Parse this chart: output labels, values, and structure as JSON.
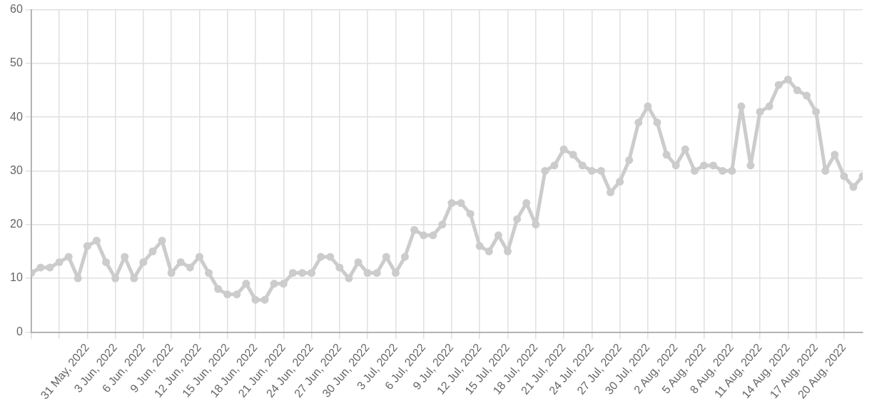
{
  "chart_data": {
    "type": "line",
    "x": [
      "2022-05-25",
      "2022-05-26",
      "2022-05-27",
      "2022-05-28",
      "2022-05-29",
      "2022-05-30",
      "2022-05-31",
      "2022-06-01",
      "2022-06-02",
      "2022-06-03",
      "2022-06-04",
      "2022-06-05",
      "2022-06-06",
      "2022-06-07",
      "2022-06-08",
      "2022-06-09",
      "2022-06-10",
      "2022-06-11",
      "2022-06-12",
      "2022-06-13",
      "2022-06-14",
      "2022-06-15",
      "2022-06-16",
      "2022-06-17",
      "2022-06-18",
      "2022-06-19",
      "2022-06-20",
      "2022-06-21",
      "2022-06-22",
      "2022-06-23",
      "2022-06-24",
      "2022-06-25",
      "2022-06-26",
      "2022-06-27",
      "2022-06-28",
      "2022-06-29",
      "2022-06-30",
      "2022-07-01",
      "2022-07-02",
      "2022-07-03",
      "2022-07-04",
      "2022-07-05",
      "2022-07-06",
      "2022-07-07",
      "2022-07-08",
      "2022-07-09",
      "2022-07-10",
      "2022-07-11",
      "2022-07-12",
      "2022-07-13",
      "2022-07-14",
      "2022-07-15",
      "2022-07-16",
      "2022-07-17",
      "2022-07-18",
      "2022-07-19",
      "2022-07-20",
      "2022-07-21",
      "2022-07-22",
      "2022-07-23",
      "2022-07-24",
      "2022-07-25",
      "2022-07-26",
      "2022-07-27",
      "2022-07-28",
      "2022-07-29",
      "2022-07-30",
      "2022-07-31",
      "2022-08-01",
      "2022-08-02",
      "2022-08-03",
      "2022-08-04",
      "2022-08-05",
      "2022-08-06",
      "2022-08-07",
      "2022-08-08",
      "2022-08-09",
      "2022-08-10",
      "2022-08-11",
      "2022-08-12",
      "2022-08-13",
      "2022-08-14",
      "2022-08-15",
      "2022-08-16",
      "2022-08-17",
      "2022-08-18",
      "2022-08-19",
      "2022-08-20",
      "2022-08-21",
      "2022-08-22"
    ],
    "series": [
      {
        "color": "#cccccc",
        "values": [
          11,
          12,
          12,
          13,
          14,
          10,
          16,
          17,
          13,
          10,
          14,
          10,
          13,
          15,
          17,
          11,
          13,
          12,
          14,
          11,
          8,
          7,
          7,
          9,
          6,
          6,
          9,
          9,
          11,
          11,
          11,
          14,
          14,
          12,
          10,
          13,
          11,
          11,
          14,
          11,
          14,
          19,
          18,
          18,
          20,
          24,
          24,
          22,
          16,
          15,
          18,
          15,
          21,
          24,
          20,
          30,
          31,
          34,
          33,
          31,
          30,
          30,
          26,
          28,
          32,
          39,
          42,
          39,
          33,
          31,
          34,
          30,
          31,
          31,
          30,
          30,
          42,
          31,
          41,
          42,
          46,
          47,
          45,
          44,
          41,
          30,
          33,
          29,
          27,
          29
        ]
      }
    ],
    "xlim": [
      "2022-05-25",
      "2022-08-22"
    ],
    "xticks": [
      {
        "value": "2022-05-25",
        "label": null
      },
      {
        "value": "2022-05-28",
        "label": null
      },
      {
        "value": "2022-05-31",
        "label": "31 May, 2022"
      },
      {
        "value": "2022-06-03",
        "label": "3 Jun, 2022"
      },
      {
        "value": "2022-06-06",
        "label": "6 Jun, 2022"
      },
      {
        "value": "2022-06-09",
        "label": "9 Jun, 2022"
      },
      {
        "value": "2022-06-12",
        "label": "12 Jun, 2022"
      },
      {
        "value": "2022-06-15",
        "label": "15 Jun, 2022"
      },
      {
        "value": "2022-06-18",
        "label": "18 Jun, 2022"
      },
      {
        "value": "2022-06-21",
        "label": "21 Jun, 2022"
      },
      {
        "value": "2022-06-24",
        "label": "24 Jun, 2022"
      },
      {
        "value": "2022-06-27",
        "label": "27 Jun, 2022"
      },
      {
        "value": "2022-06-30",
        "label": "30 Jun, 2022"
      },
      {
        "value": "2022-07-03",
        "label": "3 Jul, 2022"
      },
      {
        "value": "2022-07-06",
        "label": "6 Jul, 2022"
      },
      {
        "value": "2022-07-09",
        "label": "9 Jul, 2022"
      },
      {
        "value": "2022-07-12",
        "label": "12 Jul, 2022"
      },
      {
        "value": "2022-07-15",
        "label": "15 Jul, 2022"
      },
      {
        "value": "2022-07-18",
        "label": "18 Jul, 2022"
      },
      {
        "value": "2022-07-21",
        "label": "21 Jul, 2022"
      },
      {
        "value": "2022-07-24",
        "label": "24 Jul, 2022"
      },
      {
        "value": "2022-07-27",
        "label": "27 Jul, 2022"
      },
      {
        "value": "2022-07-30",
        "label": "30 Jul, 2022"
      },
      {
        "value": "2022-08-02",
        "label": "2 Aug, 2022"
      },
      {
        "value": "2022-08-05",
        "label": "5 Aug, 2022"
      },
      {
        "value": "2022-08-08",
        "label": "8 Aug, 2022"
      },
      {
        "value": "2022-08-11",
        "label": "11 Aug, 2022"
      },
      {
        "value": "2022-08-14",
        "label": "14 Aug, 2022"
      },
      {
        "value": "2022-08-17",
        "label": "17 Aug, 2022"
      },
      {
        "value": "2022-08-20",
        "label": "20 Aug, 2022"
      }
    ],
    "ylim": [
      0,
      60
    ],
    "yticks": [
      0,
      10,
      20,
      30,
      40,
      50,
      60
    ],
    "grid": true,
    "legend": false,
    "marker": "circle",
    "line_style": "solid"
  }
}
